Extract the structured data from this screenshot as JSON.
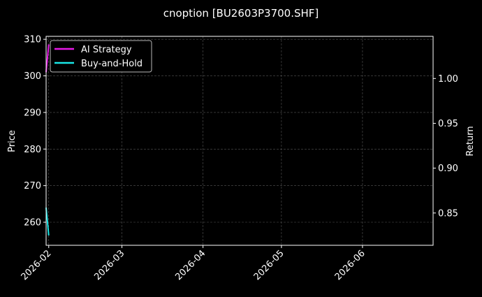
{
  "chart_data": {
    "type": "line",
    "title": "cnoption [BU2603P3700.SHF]",
    "xlabel": "",
    "ylabel_left": "Price",
    "ylabel_right": "Return",
    "xlim": [
      "2026-01-31",
      "2026-06-28"
    ],
    "ylim_left": [
      253.7,
      310.8
    ],
    "ylim_right": [
      0.814,
      1.047
    ],
    "x_ticks": [
      "2026-02",
      "2026-03",
      "2026-04",
      "2026-05",
      "2026-06"
    ],
    "x_tick_dates": [
      "2026-02-01",
      "2026-03-01",
      "2026-04-01",
      "2026-05-01",
      "2026-06-01"
    ],
    "y_ticks_left": [
      260,
      270,
      280,
      290,
      300,
      310
    ],
    "y_ticks_right": [
      "0.85",
      "0.90",
      "0.95",
      "1.00"
    ],
    "grid": true,
    "legend_position": "top-left",
    "series": [
      {
        "name": "AI Strategy",
        "axis": "right",
        "color": "#e619e6",
        "x": [
          "2026-01-31",
          "2026-02-01"
        ],
        "y": [
          1.007,
          1.038
        ]
      },
      {
        "name": "Buy-and-Hold",
        "axis": "right",
        "color": "#19e6e6",
        "x": [
          "2026-01-31",
          "2026-02-01"
        ],
        "y": [
          0.856,
          0.825
        ]
      }
    ]
  }
}
